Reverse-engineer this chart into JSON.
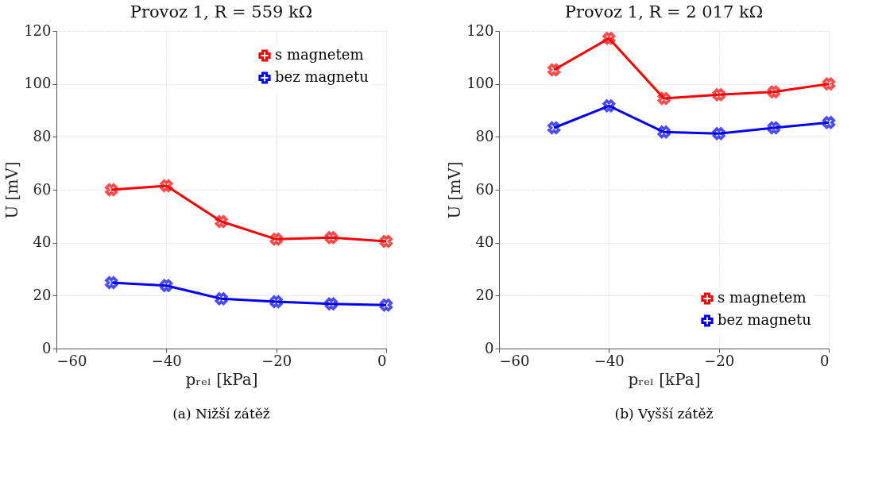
{
  "chart_data": [
    {
      "type": "line",
      "title": "Provoz 1, R = 559 kΩ",
      "xlabel": "pᵣₑₗ [kPa]",
      "ylabel": "U [mV]",
      "x": [
        -50,
        -40,
        -30,
        -20,
        -10,
        0
      ],
      "xlim": [
        -60,
        0
      ],
      "xticks": [
        -60,
        -40,
        -20,
        0
      ],
      "ylim": [
        0,
        120
      ],
      "yticks": [
        0,
        20,
        40,
        60,
        80,
        100,
        120
      ],
      "grid": true,
      "legend": "top right",
      "marker": "cross",
      "line_style": "solid",
      "annotations": [
        "(a) Nižší zátěž"
      ],
      "series": [
        {
          "name": "s magnetem",
          "color": "#ff0000",
          "values": [
            60,
            61.5,
            48,
            41.3,
            41.9,
            40.5
          ]
        },
        {
          "name": "bez magnetu",
          "color": "#0000ff",
          "values": [
            24.9,
            23.8,
            18.8,
            17.7,
            16.9,
            16.4
          ]
        }
      ]
    },
    {
      "type": "line",
      "title": "Provoz 1, R = 2 017 kΩ",
      "xlabel": "pᵣₑₗ [kPa]",
      "ylabel": "U [mV]",
      "x": [
        -50,
        -40,
        -30,
        -20,
        -10,
        0
      ],
      "xlim": [
        -60,
        0
      ],
      "xticks": [
        -60,
        -40,
        -20,
        0
      ],
      "ylim": [
        0,
        120
      ],
      "yticks": [
        0,
        20,
        40,
        60,
        80,
        100,
        120
      ],
      "grid": true,
      "legend": "bottom right",
      "marker": "cross",
      "line_style": "solid",
      "annotations": [
        "(b) Vyšší zátěž"
      ],
      "series": [
        {
          "name": "s magnetem",
          "color": "#ff0000",
          "values": [
            105.3,
            117.2,
            94.5,
            95.9,
            97,
            100
          ]
        },
        {
          "name": "bez magnetu",
          "color": "#0000ff",
          "values": [
            83.4,
            91.7,
            81.8,
            81.2,
            83.4,
            85.4
          ]
        }
      ]
    }
  ]
}
